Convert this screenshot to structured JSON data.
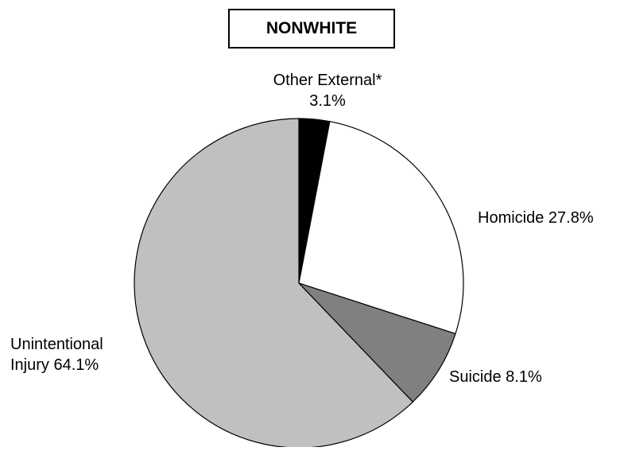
{
  "chart_data": {
    "type": "pie",
    "title": "NONWHITE",
    "slices": [
      {
        "label_line1": "Other External*",
        "label_line2": "3.1%",
        "value": 3.1,
        "color": "#000000"
      },
      {
        "label_line1": "Homicide 27.8%",
        "label_line2": "",
        "value": 27.8,
        "color": "#ffffff"
      },
      {
        "label_line1": "Suicide 8.1%",
        "label_line2": "",
        "value": 8.1,
        "color": "#808080"
      },
      {
        "label_line1": "Unintentional",
        "label_line2": "Injury 64.1%",
        "value": 64.1,
        "color": "#c0c0c0"
      }
    ],
    "start": "12 o'clock",
    "direction": "clockwise"
  }
}
